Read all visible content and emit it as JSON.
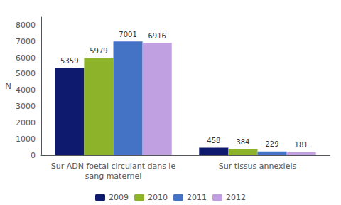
{
  "chart_data": {
    "type": "bar",
    "categories": [
      "Sur ADN foetal circulant dans le\nsang maternel",
      "Sur tissus annexiels"
    ],
    "series": [
      {
        "name": "2009",
        "color": "#0d1a6e",
        "values": [
          5359,
          458
        ]
      },
      {
        "name": "2010",
        "color": "#8db32a",
        "values": [
          5979,
          384
        ]
      },
      {
        "name": "2011",
        "color": "#4472c4",
        "values": [
          7001,
          229
        ]
      },
      {
        "name": "2012",
        "color": "#c0a0e0",
        "values": [
          6916,
          181
        ]
      }
    ],
    "ylabel": "N",
    "ylim": [
      0,
      8500
    ],
    "yticks": [
      0,
      1000,
      2000,
      3000,
      4000,
      5000,
      6000,
      7000,
      8000
    ],
    "grid": false,
    "legend": "bottom",
    "data_labels": true
  }
}
